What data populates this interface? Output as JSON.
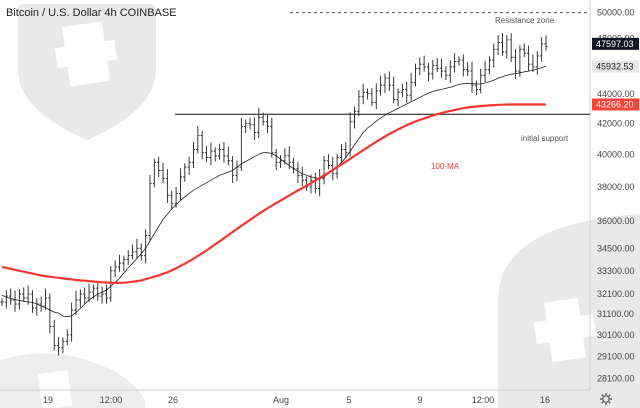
{
  "chart_data": {
    "type": "line",
    "title": "Bitcoin / U.S. Dollar  4h  COINBASE",
    "x_tick_labels": [
      "19",
      "12:00",
      "26",
      "Aug",
      "5",
      "9",
      "12:00",
      "16"
    ],
    "y_ticks": [
      28100,
      29100,
      30100,
      31100,
      32100,
      33300,
      34500,
      36000,
      38000,
      40000,
      42000,
      44000,
      46000,
      48000,
      50000
    ],
    "ylim": [
      27600,
      51000
    ],
    "log_scale": true,
    "grid": false,
    "price_tags": [
      {
        "value": "47597.03",
        "price": 47597,
        "color": "#131722"
      },
      {
        "value": "45932.53",
        "price": 45932,
        "color": "#e6e6e6"
      },
      {
        "value": "43266.20",
        "price": 43266,
        "color": "#f44336"
      }
    ],
    "annotations": {
      "resistance": "Resistance zone",
      "support": "initial support",
      "ma": "100-MA"
    },
    "resistance_level": 50000,
    "support_level": 42600,
    "colors": {
      "ma100": "#f23630",
      "ma_short": "#222222",
      "candles": "#222222",
      "resistance": "#555555",
      "support": "#111111"
    },
    "series": [
      {
        "name": "price",
        "values": [
          31700,
          32000,
          31800,
          31600,
          32100,
          31900,
          32100,
          31400,
          31600,
          31500,
          31900,
          30500,
          29600,
          29500,
          29800,
          30100,
          31300,
          31800,
          32100,
          31900,
          32200,
          32400,
          32000,
          32100,
          31900,
          33300,
          33500,
          33700,
          33900,
          34100,
          34300,
          34500,
          34100,
          35200,
          38200,
          39500,
          39000,
          38500,
          37500,
          37000,
          37600,
          38600,
          39200,
          39500,
          40300,
          41200,
          40100,
          39800,
          40200,
          39900,
          40300,
          39900,
          39600,
          38700,
          39200,
          41800,
          42000,
          41900,
          41400,
          42400,
          42100,
          41800,
          40100,
          39500,
          39600,
          39900,
          39500,
          39100,
          38700,
          38400,
          38000,
          38400,
          37900,
          38500,
          39600,
          39300,
          38800,
          39800,
          40300,
          40100,
          42100,
          42800,
          43800,
          44100,
          44000,
          43400,
          44200,
          44600,
          45100,
          44600,
          43600,
          44100,
          44300,
          43900,
          44800,
          45800,
          46100,
          45900,
          45400,
          46000,
          45800,
          45600,
          45300,
          45900,
          46300,
          46400,
          45700,
          45600,
          44600,
          44300,
          45300,
          45700,
          46400,
          47200,
          47700,
          47000,
          47900,
          46600,
          45600,
          47200,
          46900,
          46100,
          45900,
          46700,
          47600,
          47400
        ]
      },
      {
        "name": "ma_short",
        "values": [
          32050,
          31930,
          31880,
          31820,
          31780,
          31740,
          31700,
          31680,
          31600,
          31500,
          31420,
          31300,
          31200,
          31150,
          31000,
          30980,
          31020,
          31180,
          31380,
          31600,
          31800,
          31950,
          32100,
          32200,
          32300,
          32500,
          32700,
          32900,
          33200,
          33450,
          33700,
          33950,
          34200,
          34500,
          34900,
          35300,
          35700,
          36100,
          36400,
          36700,
          36950,
          37200,
          37400,
          37600,
          37800,
          37950,
          38100,
          38250,
          38400,
          38550,
          38700,
          38800,
          38900,
          39000,
          39200,
          39400,
          39550,
          39700,
          39850,
          40000,
          40100,
          40100,
          40050,
          39900,
          39700,
          39500,
          39300,
          39100,
          38950,
          38800,
          38700,
          38600,
          38550,
          38500,
          38600,
          38800,
          39000,
          39200,
          39500,
          39800,
          40200,
          40600,
          41000,
          41400,
          41700,
          41900,
          42150,
          42350,
          42550,
          42700,
          42850,
          43000,
          43150,
          43300,
          43450,
          43600,
          43750,
          43900,
          44050,
          44150,
          44250,
          44300,
          44380,
          44450,
          44550,
          44650,
          44700,
          44720,
          44700,
          44690,
          44680,
          44750,
          44850,
          44950,
          45100,
          45200,
          45300,
          45380,
          45420,
          45480,
          45550,
          45600,
          45650,
          45750,
          45850,
          45950
        ]
      },
      {
        "name": "ma100",
        "values": [
          33500,
          33450,
          33400,
          33350,
          33300,
          33250,
          33200,
          33150,
          33100,
          33050,
          33020,
          32990,
          32960,
          32930,
          32900,
          32870,
          32850,
          32820,
          32800,
          32780,
          32760,
          32740,
          32720,
          32700,
          32690,
          32680,
          32670,
          32670,
          32680,
          32700,
          32730,
          32760,
          32800,
          32860,
          32920,
          32990,
          33060,
          33140,
          33220,
          33320,
          33430,
          33550,
          33670,
          33800,
          33940,
          34080,
          34230,
          34380,
          34550,
          34720,
          34880,
          35050,
          35220,
          35400,
          35570,
          35740,
          35910,
          36080,
          36250,
          36420,
          36580,
          36740,
          36890,
          37040,
          37190,
          37340,
          37490,
          37640,
          37790,
          37930,
          38080,
          38220,
          38380,
          38540,
          38700,
          38860,
          39030,
          39200,
          39370,
          39540,
          39720,
          39900,
          40080,
          40260,
          40440,
          40620,
          40800,
          40970,
          41140,
          41300,
          41450,
          41600,
          41740,
          41880,
          42000,
          42120,
          42230,
          42330,
          42430,
          42520,
          42610,
          42690,
          42760,
          42830,
          42890,
          42950,
          43010,
          43060,
          43100,
          43130,
          43160,
          43180,
          43200,
          43220,
          43240,
          43250,
          43260,
          43263,
          43266,
          43266,
          43266,
          43266,
          43266,
          43266,
          43266,
          43266
        ]
      }
    ]
  }
}
